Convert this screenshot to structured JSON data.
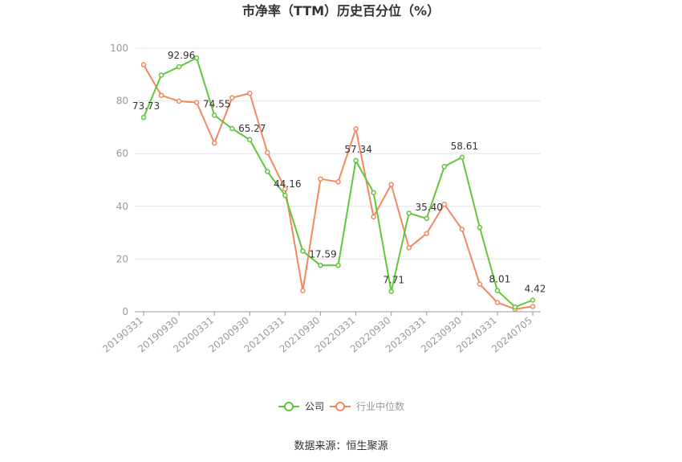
{
  "chart_data": {
    "type": "line",
    "title": "市净率（TTM）历史百分位（%）",
    "ylim": [
      0,
      100
    ],
    "y_ticks": [
      "0",
      "20",
      "40",
      "60",
      "80",
      "100"
    ],
    "x_tick_labels": [
      "20190331",
      "20190930",
      "20200331",
      "20200930",
      "20210331",
      "20210930",
      "20220331",
      "20220930",
      "20230331",
      "20230930",
      "20240331",
      "20240705"
    ],
    "grid": true,
    "legend_position": "bottom",
    "series": [
      {
        "name": "公司",
        "color": "#5fc738",
        "values": [
          73.73,
          89.8,
          92.96,
          96.3,
          74.55,
          69.5,
          65.27,
          53.2,
          44.16,
          23.0,
          17.59,
          17.6,
          57.34,
          45.2,
          7.71,
          37.4,
          35.4,
          55.1,
          58.61,
          32.0,
          8.01,
          1.8,
          4.42
        ],
        "labels": [
          "73.73",
          "",
          "92.96",
          "",
          "74.55",
          "",
          "65.27",
          "",
          "44.16",
          "",
          "17.59",
          "",
          "57.34",
          "",
          "7.71",
          "",
          "35.40",
          "",
          "58.61",
          "",
          "8.01",
          "",
          "4.42"
        ]
      },
      {
        "name": "行业中位数",
        "color": "#f5875f",
        "values": [
          93.7,
          82.1,
          79.9,
          79.4,
          64.0,
          81.2,
          82.9,
          60.4,
          46.6,
          8.0,
          50.4,
          49.3,
          69.4,
          36.0,
          48.3,
          24.3,
          29.7,
          40.8,
          31.3,
          10.5,
          3.5,
          1.0,
          2.0
        ]
      }
    ],
    "source_text": "数据来源：恒生聚源"
  }
}
